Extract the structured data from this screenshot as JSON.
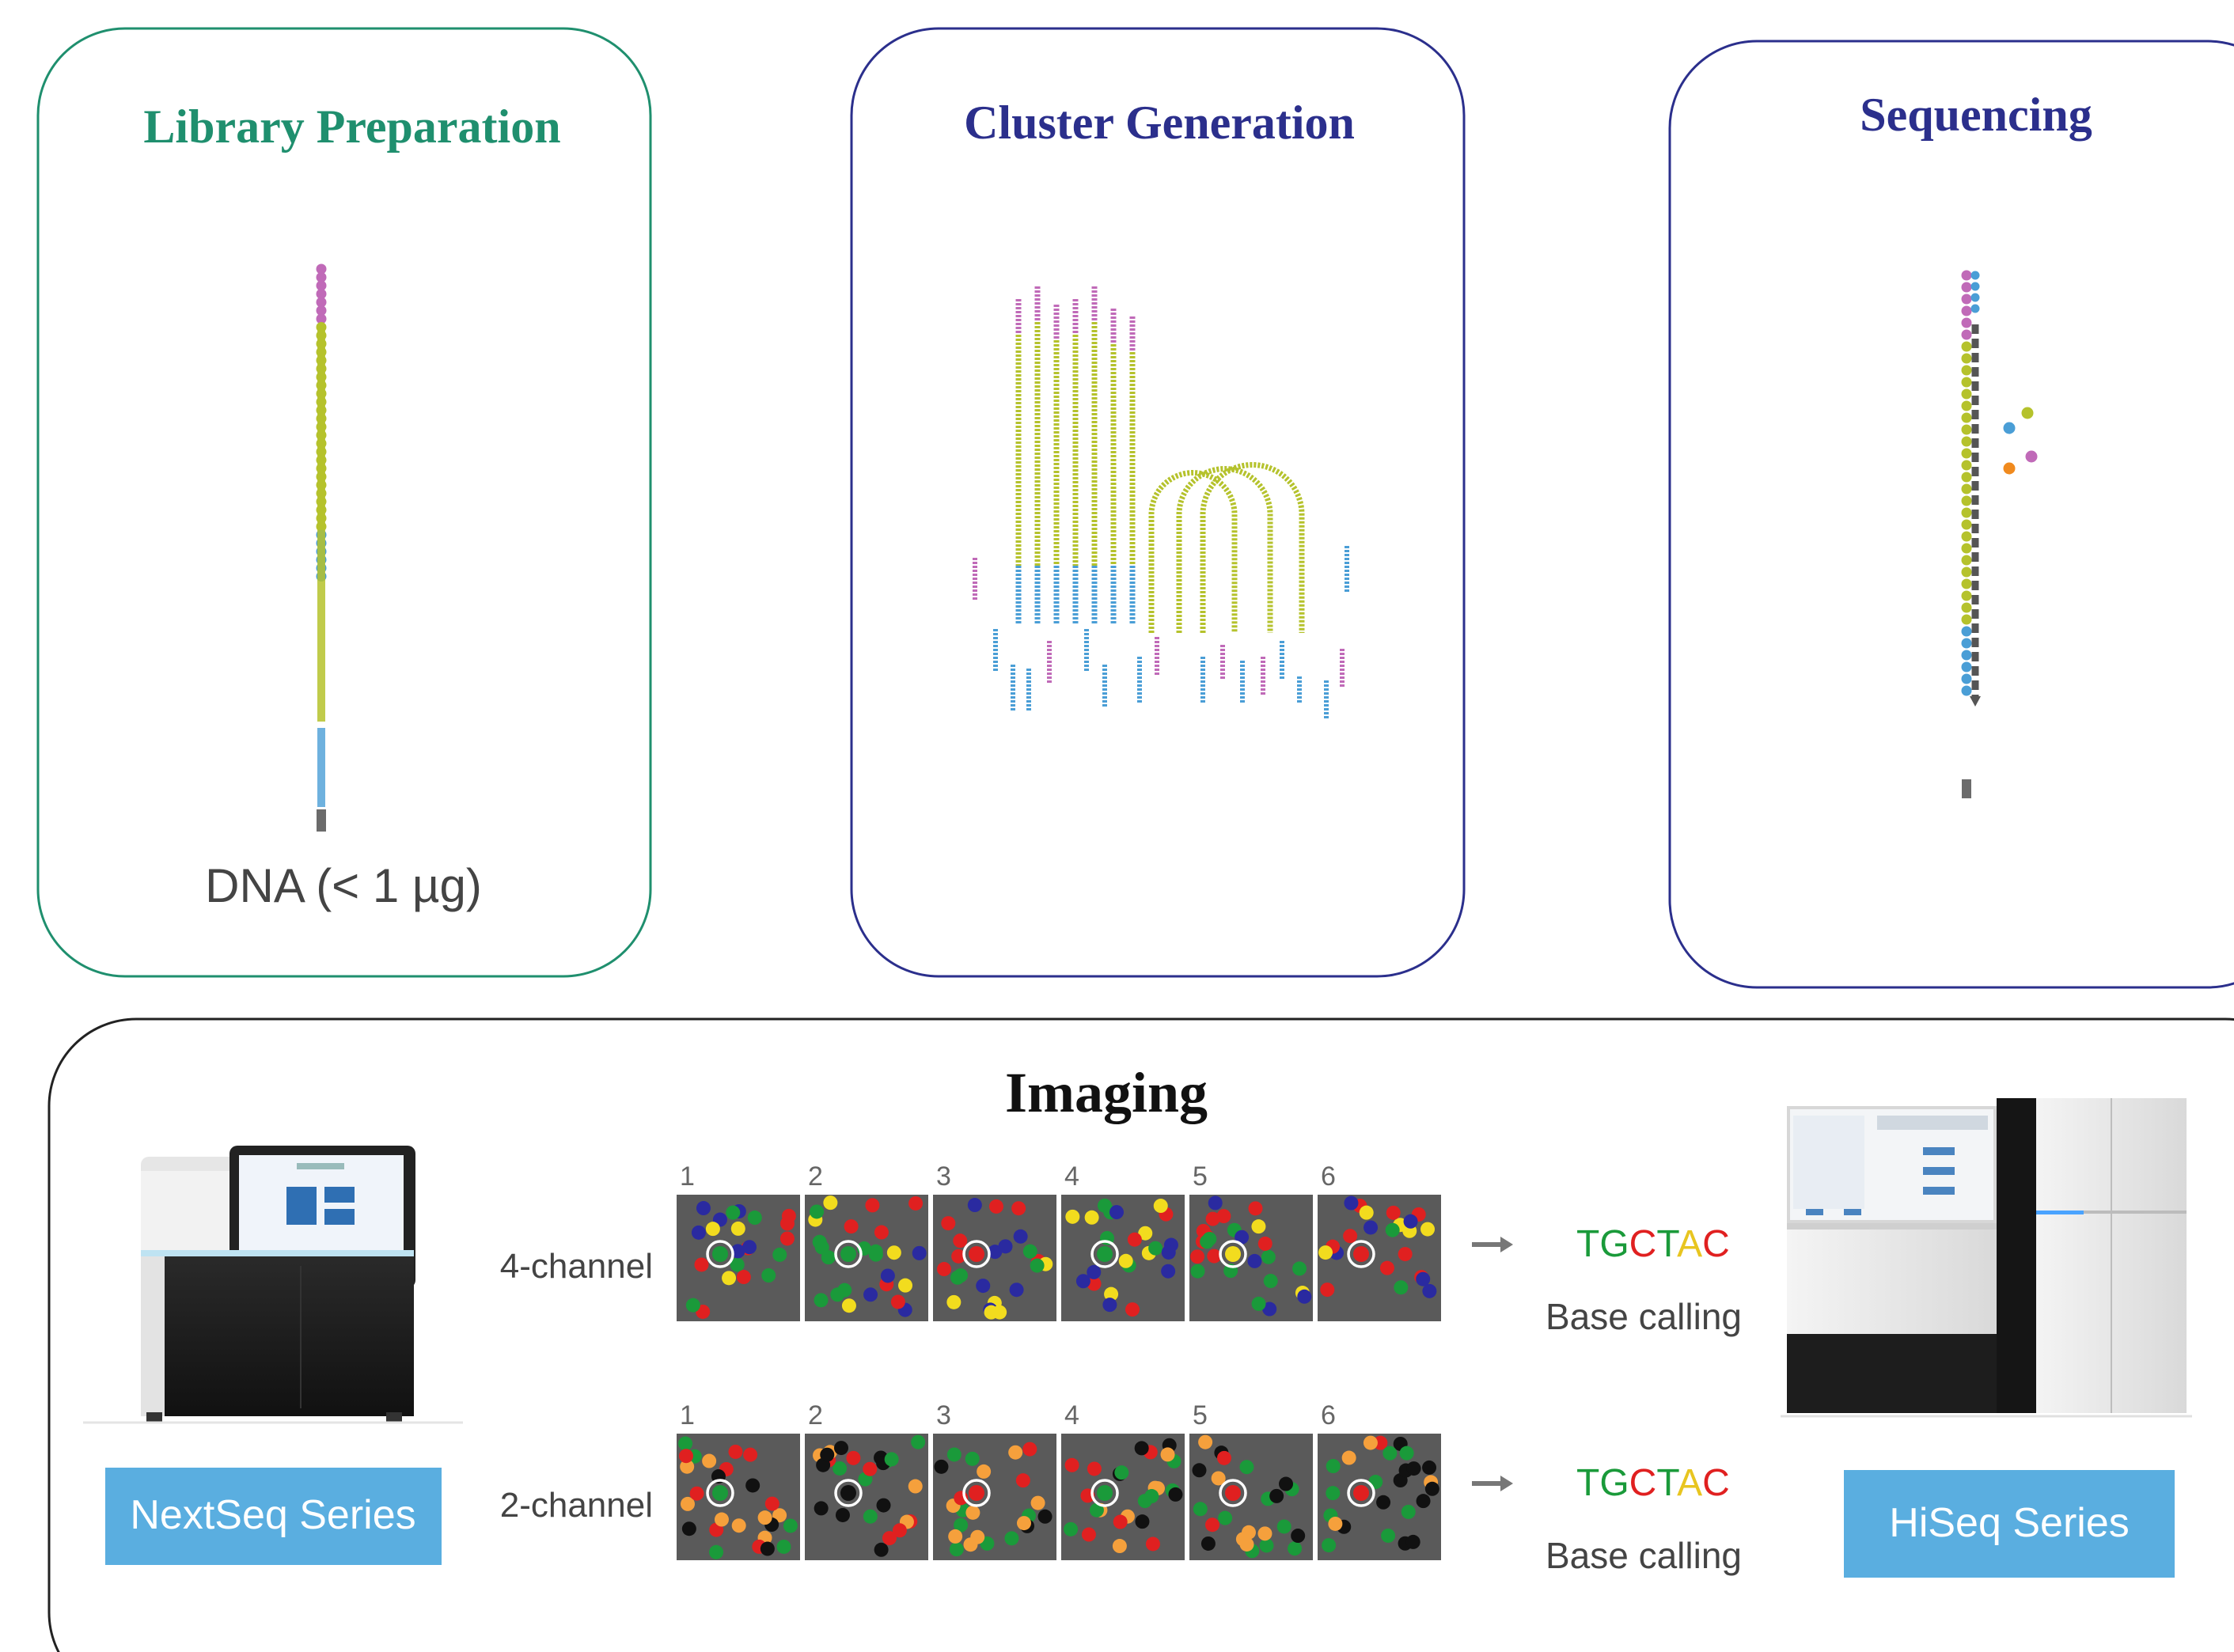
{
  "panels": {
    "library": {
      "title": "Library Preparation",
      "title_color": "#1f8f6e",
      "border_color": "#1f8f6e",
      "caption": "DNA (< 1 µg)"
    },
    "cluster": {
      "title": "Cluster Generation",
      "title_color": "#2b2f8c",
      "border_color": "#2b2f8c"
    },
    "sequencing": {
      "title": "Sequencing",
      "title_color": "#2b2f8c",
      "border_color": "#2b2f8c"
    },
    "imaging": {
      "title": "Imaging",
      "cycle_numbers": [
        "1",
        "2",
        "3",
        "4",
        "5",
        "6"
      ],
      "rows": [
        {
          "label": "4-channel",
          "sequence": [
            "T",
            "G",
            "C",
            "T",
            "A",
            "C"
          ],
          "result_caption": "Base calling"
        },
        {
          "label": "2-channel",
          "sequence": [
            "T",
            "G",
            "C",
            "T",
            "A",
            "C"
          ],
          "result_caption": "Base calling"
        }
      ],
      "left_instrument": {
        "label": "NextSeq Series"
      },
      "right_instrument": {
        "label": "HiSeq Series"
      }
    }
  },
  "colors": {
    "adapter_pink": "#c06ab8",
    "insert_yellow": "#b5c22c",
    "adapter_blue": "#4a9ed6",
    "stub_gray": "#6b6b6b",
    "base_T": "#1a9a3a",
    "base_G": "#1a9a3a",
    "base_C": "#e02020",
    "base_A": "#e8c520",
    "dye_green": "#1a9a3a",
    "dye_red": "#e02020",
    "dye_yellow": "#f2dc1e",
    "dye_blue": "#2a2aa0",
    "dye_orange": "#f5a03c",
    "dye_black": "#111111",
    "tile_bg": "#5a5a5a",
    "instrument_button": "#5aaee0",
    "seq_base_blue": "#4a9ed6",
    "seq_base_yellow": "#b5c22c",
    "seq_base_orange": "#f08a1e",
    "seq_base_pink": "#c06ab8"
  },
  "icons": [
    "arrow-right-icon",
    "arrow-right-icon"
  ]
}
